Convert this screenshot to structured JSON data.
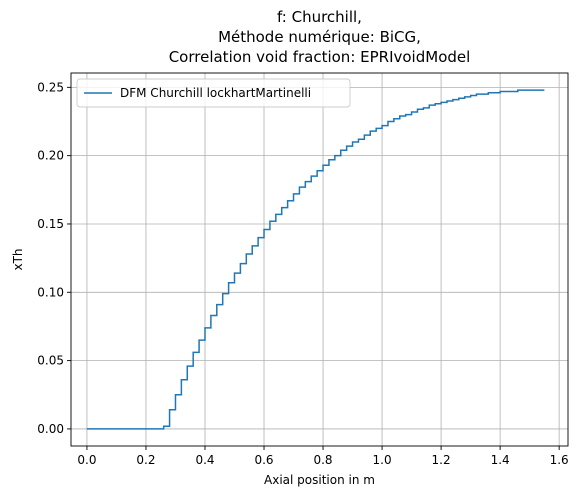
{
  "chart_data": {
    "type": "line",
    "title_lines": [
      "f: Churchill,",
      "Méthode numérique: BiCG,",
      "Correlation void fraction: EPRIvoidModel"
    ],
    "xlabel": "Axial position in m",
    "ylabel": "xTh",
    "xlim": [
      -0.054,
      1.63
    ],
    "ylim": [
      -0.0125,
      0.2605
    ],
    "xticks": [
      0.0,
      0.2,
      0.4,
      0.6,
      0.8,
      1.0,
      1.2,
      1.4,
      1.6
    ],
    "xtick_labels": [
      "0.0",
      "0.2",
      "0.4",
      "0.6",
      "0.8",
      "1.0",
      "1.2",
      "1.4",
      "1.6"
    ],
    "yticks": [
      0.0,
      0.05,
      0.1,
      0.15,
      0.2,
      0.25
    ],
    "ytick_labels": [
      "0.00",
      "0.05",
      "0.10",
      "0.15",
      "0.20",
      "0.25"
    ],
    "grid": true,
    "legend_position": "top-left",
    "series": [
      {
        "name": "DFM Churchill lockhartMartinelli",
        "color": "#1f77b4",
        "drawstyle": "steps",
        "x": [
          0.0,
          0.02,
          0.04,
          0.06,
          0.08,
          0.1,
          0.12,
          0.14,
          0.16,
          0.18,
          0.2,
          0.22,
          0.24,
          0.26,
          0.28,
          0.3,
          0.32,
          0.34,
          0.36,
          0.38,
          0.4,
          0.42,
          0.44,
          0.46,
          0.48,
          0.5,
          0.52,
          0.54,
          0.56,
          0.58,
          0.6,
          0.62,
          0.64,
          0.66,
          0.68,
          0.7,
          0.72,
          0.74,
          0.76,
          0.78,
          0.8,
          0.82,
          0.84,
          0.86,
          0.88,
          0.9,
          0.92,
          0.94,
          0.96,
          0.98,
          1.0,
          1.02,
          1.04,
          1.06,
          1.08,
          1.1,
          1.12,
          1.14,
          1.16,
          1.18,
          1.2,
          1.22,
          1.24,
          1.26,
          1.28,
          1.3,
          1.32,
          1.34,
          1.36,
          1.38,
          1.4,
          1.42,
          1.44,
          1.46,
          1.48,
          1.5,
          1.52,
          1.54,
          1.55
        ],
        "y": [
          0.0,
          0.0,
          0.0,
          0.0,
          0.0,
          0.0,
          0.0,
          0.0,
          0.0,
          0.0,
          0.0,
          0.0,
          0.0,
          0.002,
          0.014,
          0.025,
          0.036,
          0.046,
          0.056,
          0.065,
          0.074,
          0.083,
          0.091,
          0.099,
          0.107,
          0.114,
          0.121,
          0.128,
          0.134,
          0.14,
          0.146,
          0.152,
          0.157,
          0.162,
          0.167,
          0.172,
          0.177,
          0.181,
          0.185,
          0.189,
          0.193,
          0.197,
          0.2,
          0.204,
          0.207,
          0.21,
          0.212,
          0.215,
          0.218,
          0.22,
          0.222,
          0.225,
          0.227,
          0.229,
          0.23,
          0.232,
          0.234,
          0.235,
          0.237,
          0.238,
          0.239,
          0.24,
          0.241,
          0.242,
          0.243,
          0.244,
          0.245,
          0.245,
          0.246,
          0.246,
          0.247,
          0.247,
          0.247,
          0.248,
          0.248,
          0.248,
          0.248,
          0.248,
          0.248
        ]
      }
    ]
  }
}
